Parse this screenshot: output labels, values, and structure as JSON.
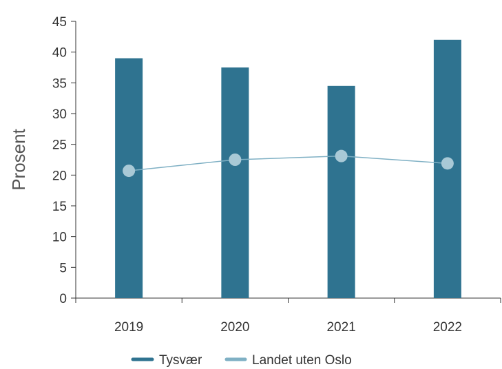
{
  "chart_data": {
    "type": "bar",
    "categories": [
      "2019",
      "2020",
      "2021",
      "2022"
    ],
    "ylabel": "Prosent",
    "ylim": [
      0,
      45
    ],
    "yticks": [
      0,
      5,
      10,
      15,
      20,
      25,
      30,
      35,
      40,
      45
    ],
    "grid": false,
    "legend_position": "bottom",
    "series": [
      {
        "name": "Tysvær",
        "type": "bar",
        "color": "#2f7390",
        "values": [
          39,
          37.5,
          34.5,
          42
        ]
      },
      {
        "name": "Landet uten Oslo",
        "type": "line",
        "color": "#7fb0c4",
        "marker_color": "#a9c9d6",
        "values": [
          20.7,
          22.5,
          23.1,
          21.9
        ]
      }
    ]
  }
}
